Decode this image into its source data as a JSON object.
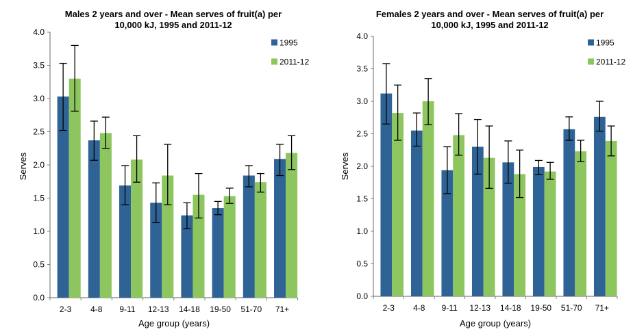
{
  "colors": {
    "series_1995": "#2F6396",
    "series_2011_12": "#8DC55E",
    "error_bar": "#000000",
    "axis_line": "#808080",
    "text": "#000000",
    "background": "#FFFFFF"
  },
  "chart_data": [
    {
      "type": "bar",
      "id": "males",
      "title": "Males 2 years and over - Mean serves of fruit(a) per 10,000 kJ, 1995 and 2011-12",
      "title_lines": [
        "Males 2 years and over - Mean serves of fruit(a) per",
        "10,000 kJ, 1995 and 2011-12"
      ],
      "xlabel": "Age group (years)",
      "ylabel": "Serves",
      "ylim": [
        0.0,
        4.0
      ],
      "ytick_step": 0.5,
      "ytick_labels": [
        "0.0",
        "0.5",
        "1.0",
        "1.5",
        "2.0",
        "2.5",
        "3.0",
        "3.5",
        "4.0"
      ],
      "grid": false,
      "legend_position": "top-right",
      "legend": [
        "1995",
        "2011-12"
      ],
      "categories": [
        "2-3",
        "4-8",
        "9-11",
        "12-13",
        "14-18",
        "19-50",
        "51-70",
        "71+"
      ],
      "series": [
        {
          "name": "1995",
          "color": "#2F6396",
          "values": [
            3.03,
            2.37,
            1.69,
            1.43,
            1.24,
            1.35,
            1.84,
            2.09
          ],
          "error_low": [
            2.52,
            2.07,
            1.4,
            1.13,
            1.04,
            1.25,
            1.67,
            1.84
          ],
          "error_high": [
            3.53,
            2.66,
            1.99,
            1.73,
            1.43,
            1.45,
            1.99,
            2.31
          ]
        },
        {
          "name": "2011-12",
          "color": "#8DC55E",
          "values": [
            3.3,
            2.48,
            2.08,
            1.84,
            1.55,
            1.53,
            1.74,
            2.18
          ],
          "error_low": [
            2.81,
            2.25,
            1.74,
            1.4,
            1.2,
            1.42,
            1.59,
            1.93
          ],
          "error_high": [
            3.8,
            2.72,
            2.44,
            2.31,
            1.87,
            1.65,
            1.87,
            2.44
          ]
        }
      ]
    },
    {
      "type": "bar",
      "id": "females",
      "title": "Females 2 years and over - Mean serves of fruit(a) per 10,000 kJ, 1995 and 2011-12",
      "title_lines": [
        "Females 2 years and over - Mean serves of fruit(a) per",
        "10,000 kJ, 1995 and 2011-12"
      ],
      "xlabel": "Age group (years)",
      "ylabel": "Serves",
      "ylim": [
        0.0,
        4.0
      ],
      "ytick_step": 0.5,
      "ytick_labels": [
        "0.0",
        "0.5",
        "1.0",
        "1.5",
        "2.0",
        "2.5",
        "3.0",
        "3.5",
        "4.0"
      ],
      "grid": false,
      "legend_position": "top-right",
      "legend": [
        "1995",
        "2011-12"
      ],
      "categories": [
        "2-3",
        "4-8",
        "9-11",
        "12-13",
        "14-18",
        "19-50",
        "51-70",
        "71+"
      ],
      "series": [
        {
          "name": "1995",
          "color": "#2F6396",
          "values": [
            3.12,
            2.55,
            1.94,
            2.3,
            2.06,
            1.99,
            2.57,
            2.76
          ],
          "error_low": [
            2.65,
            2.31,
            1.58,
            1.88,
            1.74,
            1.87,
            2.4,
            2.54
          ],
          "error_high": [
            3.58,
            2.82,
            2.3,
            2.72,
            2.39,
            2.09,
            2.76,
            3.0
          ]
        },
        {
          "name": "2011-12",
          "color": "#8DC55E",
          "values": [
            2.82,
            3.0,
            2.48,
            2.13,
            1.88,
            1.92,
            2.23,
            2.39
          ],
          "error_low": [
            2.4,
            2.64,
            2.17,
            1.66,
            1.52,
            1.8,
            2.07,
            2.16
          ],
          "error_high": [
            3.25,
            3.35,
            2.81,
            2.62,
            2.25,
            2.06,
            2.4,
            2.62
          ]
        }
      ]
    }
  ]
}
